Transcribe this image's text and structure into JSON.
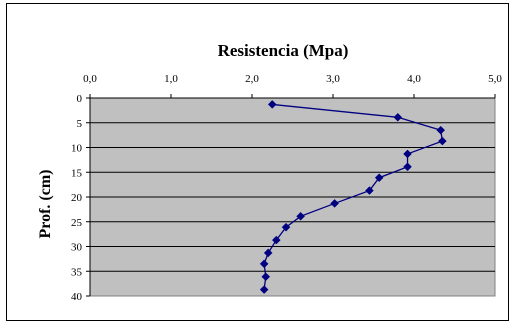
{
  "chart_data": {
    "type": "line",
    "title": "Resistencia  (Mpa)",
    "xlabel": "",
    "ylabel": "Prof. (cm)",
    "x_axis_position": "top",
    "y_axis_inverted": true,
    "xlim": [
      0,
      5
    ],
    "ylim": [
      0,
      40
    ],
    "x_ticks": [
      0,
      1,
      2,
      3,
      4,
      5
    ],
    "x_tick_labels": [
      "0,0",
      "1,0",
      "2,0",
      "3,0",
      "4,0",
      "5,0"
    ],
    "y_ticks": [
      0,
      5,
      10,
      15,
      20,
      25,
      30,
      35,
      40
    ],
    "y_tick_labels": [
      "0",
      "5",
      "10",
      "15",
      "20",
      "25",
      "30",
      "35",
      "40"
    ],
    "grid": "horizontal",
    "plot_background": "#c0c0c0",
    "series": [
      {
        "color": "#000080",
        "marker": "diamond",
        "points": [
          {
            "x": 2.25,
            "y": 1.3
          },
          {
            "x": 3.8,
            "y": 3.9
          },
          {
            "x": 4.33,
            "y": 6.5
          },
          {
            "x": 4.35,
            "y": 8.7
          },
          {
            "x": 3.92,
            "y": 11.3
          },
          {
            "x": 3.92,
            "y": 13.9
          },
          {
            "x": 3.57,
            "y": 16.1
          },
          {
            "x": 3.45,
            "y": 18.7
          },
          {
            "x": 3.02,
            "y": 21.3
          },
          {
            "x": 2.6,
            "y": 23.9
          },
          {
            "x": 2.42,
            "y": 26.1
          },
          {
            "x": 2.3,
            "y": 28.7
          },
          {
            "x": 2.2,
            "y": 31.3
          },
          {
            "x": 2.15,
            "y": 33.5
          },
          {
            "x": 2.17,
            "y": 36.1
          },
          {
            "x": 2.15,
            "y": 38.7
          }
        ]
      }
    ]
  }
}
